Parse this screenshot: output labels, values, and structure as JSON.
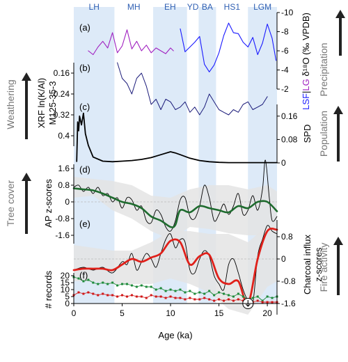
{
  "colors": {
    "band": "#ddeaf8",
    "lg": "#a020c0",
    "lsf": "#1a1aff",
    "xrf": "#1b1b7a",
    "spd": "#000000",
    "ap_smooth": "#1e6b2e",
    "charcoal_smooth": "#e0201a",
    "records_green": "#1e8a3a",
    "records_red": "#d01818",
    "envelope": "#e4e4e4",
    "theme": "#777777"
  },
  "period_labels": [
    "LH",
    "MH",
    "EH",
    "YD",
    "BA",
    "HS1",
    "LGM"
  ],
  "panel_labels": [
    "(a)",
    "(b)",
    "(c)",
    "(d)",
    "(e)",
    "(f)"
  ],
  "axis_titles": {
    "d18o_lsf": "LSF",
    "d18o_sep": "|",
    "d18o_lg": "LG",
    "d18o_rest": " δ¹⁸O (‰ VPDB)",
    "xrf_line1": "XRF ln(K/Al)",
    "xrf_line2": "M125-35-3",
    "spd": "SPD",
    "ap": "AP z-scores",
    "charcoal_line1": "Charcoal influx",
    "charcoal_line2": "z-scores",
    "records": "# records",
    "x": "Age (ka)"
  },
  "theme_labels": {
    "precipitation": "Precipitation",
    "weathering": "Weathering",
    "population": "Population",
    "tree_cover": "Tree cover",
    "fire_activity": "Fire activity"
  },
  "chart_data": {
    "type": "line",
    "x_label": "Age (ka)",
    "x_range": [
      0,
      21
    ],
    "x_ticks": [
      "0",
      "5",
      "10",
      "15",
      "20"
    ],
    "shaded_periods": [
      {
        "label": "LH",
        "start": 0,
        "end": 4.2
      },
      {
        "label": "MH",
        "start": 4.2,
        "end": 8.2
      },
      {
        "label": "EH",
        "start": 8.2,
        "end": 11.7
      },
      {
        "label": "YD",
        "start": 11.7,
        "end": 12.9
      },
      {
        "label": "BA",
        "start": 12.9,
        "end": 14.7
      },
      {
        "label": "HS1",
        "start": 14.7,
        "end": 18.0
      },
      {
        "label": "LGM",
        "start": 18.0,
        "end": 21.0
      }
    ],
    "panels": [
      {
        "id": "a",
        "axis_side": "right",
        "y_label": "LSF|LG δ18O (‰ VPDB)",
        "y_range": [
          -10,
          -2
        ],
        "y_inverted": true,
        "y_ticks": [
          "-10",
          "-8",
          "-6",
          "-4",
          "-2"
        ],
        "series": [
          {
            "name": "LG",
            "x": [
              1.5,
              2.0,
              2.5,
              3.0,
              3.5,
              4.0,
              4.5,
              5.0,
              5.5,
              6.0,
              6.5,
              7.0,
              7.5,
              8.0,
              8.5,
              9.0,
              9.5,
              10.0,
              10.3
            ],
            "y": [
              -6.0,
              -5.6,
              -6.4,
              -7.0,
              -6.3,
              -7.9,
              -5.8,
              -6.5,
              -8.2,
              -6.2,
              -7.0,
              -6.0,
              -6.6,
              -5.8,
              -6.3,
              -6.0,
              -5.7,
              -6.3,
              -6.0
            ]
          },
          {
            "name": "LSF",
            "x": [
              11.0,
              11.5,
              12.0,
              12.5,
              13.0,
              13.5,
              14.0,
              14.5,
              15.0,
              15.5,
              16.0,
              16.5,
              17.0,
              17.5,
              18.0,
              18.5,
              19.0,
              19.5,
              20.0,
              20.5,
              20.9
            ],
            "y": [
              -8.3,
              -5.9,
              -6.4,
              -6.9,
              -7.5,
              -4.6,
              -3.8,
              -4.5,
              -5.8,
              -7.6,
              -8.9,
              -7.9,
              -7.8,
              -6.9,
              -6.4,
              -7.4,
              -5.6,
              -6.8,
              -8.8,
              -7.3,
              -5.0
            ]
          }
        ]
      },
      {
        "id": "b",
        "axis_side": "left",
        "y_label": "XRF ln(K/Al) M125-35-3",
        "y_range": [
          0.12,
          0.44
        ],
        "y_inverted": true,
        "y_ticks": [
          "0.16",
          "0.24",
          "0.32",
          "0.4"
        ],
        "series": [
          {
            "name": "",
            "x": [
              4.5,
              5.0,
              5.5,
              6.0,
              6.5,
              7.0,
              7.5,
              8.0,
              8.5,
              9.0,
              9.5,
              10.0,
              10.5,
              11.0,
              11.5,
              12.0,
              12.5,
              13.0,
              13.5,
              14.0,
              14.5,
              15.0,
              15.5,
              16.0,
              16.5,
              17.0,
              17.5,
              18.0,
              18.5,
              19.0,
              19.5,
              20.0
            ],
            "y": [
              0.12,
              0.18,
              0.2,
              0.24,
              0.18,
              0.16,
              0.21,
              0.28,
              0.26,
              0.3,
              0.26,
              0.27,
              0.3,
              0.29,
              0.27,
              0.31,
              0.29,
              0.32,
              0.29,
              0.24,
              0.27,
              0.3,
              0.31,
              0.32,
              0.3,
              0.31,
              0.28,
              0.27,
              0.3,
              0.29,
              0.28,
              0.25
            ]
          }
        ]
      },
      {
        "id": "c",
        "axis_side": "right",
        "y_label": "SPD",
        "y_range": [
          0,
          0.2
        ],
        "y_inverted": false,
        "y_ticks": [
          "0",
          "0.08",
          "0.16"
        ],
        "series": [
          {
            "name": "",
            "x": [
              0.3,
              0.4,
              0.5,
              0.6,
              0.8,
              1.0,
              1.2,
              1.5,
              2.0,
              3.0,
              4.0,
              5.0,
              6.0,
              7.0,
              8.0,
              9.0,
              10.0,
              10.5,
              11.0,
              12.0,
              13.0,
              14.0,
              15.0,
              16.0,
              17.0,
              18.0,
              19.0,
              20.0,
              21.0
            ],
            "y": [
              0.005,
              0.14,
              0.11,
              0.16,
              0.13,
              0.17,
              0.1,
              0.06,
              0.02,
              0.006,
              0.004,
              0.006,
              0.008,
              0.012,
              0.018,
              0.028,
              0.038,
              0.034,
              0.028,
              0.016,
              0.008,
              0.004,
              0.002,
              0.001,
              0.001,
              0.001,
              0.001,
              0.001,
              0.001
            ]
          }
        ]
      },
      {
        "id": "d",
        "axis_side": "left",
        "y_label": "AP z-scores",
        "y_range": [
          -2.0,
          1.8
        ],
        "y_inverted": false,
        "y_ticks": [
          "1.6",
          "0.8",
          "0",
          "-0.8",
          "-1.6"
        ],
        "envelope": {
          "x": [
            0,
            2,
            4,
            6,
            8,
            10,
            12,
            14,
            16,
            18,
            20,
            21
          ],
          "upper": [
            1.2,
            1.1,
            1.0,
            0.8,
            0.3,
            0.2,
            0.6,
            0.8,
            0.8,
            0.6,
            0.8,
            0.5
          ],
          "lower": [
            0.2,
            0.3,
            -0.4,
            -0.8,
            -1.4,
            -1.8,
            -1.2,
            -1.3,
            -1.5,
            -1.6,
            -1.6,
            -1.2
          ]
        },
        "series": [
          {
            "name": "",
            "x": [
              0,
              0.5,
              1.0,
              1.5,
              2.0,
              2.5,
              3.0,
              3.5,
              4.0,
              4.5,
              5.0,
              5.5,
              6.0,
              6.5,
              7.0,
              7.5,
              8.0,
              8.5,
              9.0,
              9.5,
              10.0,
              10.5,
              11.0,
              11.5,
              12.0,
              12.5,
              13.0,
              13.5,
              14.0,
              14.5,
              15.0,
              15.5,
              16.0,
              16.5,
              17.0,
              17.5,
              18.0,
              18.5,
              19.0,
              19.5,
              19.8,
              20.2,
              20.5,
              21.0
            ],
            "y": [
              0.7,
              0.8,
              0.5,
              0.7,
              0.4,
              0.7,
              0.3,
              0.4,
              0.0,
              0.2,
              -0.3,
              0.2,
              0.1,
              -0.4,
              -0.2,
              -0.9,
              -1.0,
              -0.4,
              -0.6,
              -1.2,
              -1.4,
              -0.9,
              0.1,
              0.2,
              -0.7,
              -0.8,
              -0.2,
              0.8,
              0.2,
              -0.9,
              -0.6,
              -0.1,
              -0.6,
              -0.2,
              0.4,
              -0.6,
              -0.4,
              0.3,
              -0.4,
              0.6,
              2.0,
              0.2,
              -0.9,
              -0.7
            ]
          },
          {
            "name": "",
            "x": [
              0,
              1,
              2,
              3,
              4,
              5,
              6,
              7,
              8,
              9,
              10,
              10.5,
              11,
              12,
              13,
              14,
              15,
              16,
              17,
              18,
              19,
              20,
              21
            ],
            "y": [
              0.65,
              0.6,
              0.55,
              0.4,
              0.2,
              0.0,
              -0.1,
              -0.3,
              -0.7,
              -0.9,
              -1.2,
              -1.1,
              -0.4,
              -0.5,
              -0.2,
              -0.3,
              -0.4,
              -0.5,
              -0.2,
              -0.3,
              0.0,
              0.0,
              -0.45
            ]
          }
        ]
      },
      {
        "id": "e",
        "axis_side": "right",
        "y_label": "Charcoal influx z-scores",
        "y_range": [
          -2.0,
          1.4
        ],
        "y_inverted": false,
        "y_ticks": [
          "0.8",
          "0",
          "-0.8",
          "-1.6"
        ],
        "envelope": {
          "x": [
            0,
            2,
            4,
            6,
            8,
            10,
            12,
            14,
            16,
            18,
            20,
            21
          ],
          "upper": [
            0.5,
            0.4,
            0.3,
            0.3,
            0.6,
            1.0,
            1.0,
            0.9,
            0.9,
            0.6,
            1.2,
            1.2
          ],
          "lower": [
            -0.8,
            -0.8,
            -0.9,
            -0.9,
            -0.9,
            -0.7,
            -0.9,
            -1.2,
            -1.8,
            -2.0,
            -1.0,
            -0.8
          ]
        },
        "series": [
          {
            "name": "",
            "x": [
              0,
              1.0,
              2.0,
              3.0,
              4.0,
              5.0,
              5.5,
              6.0,
              6.5,
              7.0,
              7.5,
              8.0,
              8.5,
              9.0,
              9.5,
              10.0,
              10.5,
              11.0,
              11.5,
              12.0,
              12.5,
              13.0,
              13.5,
              14.0,
              14.5,
              15.0,
              15.5,
              16.0,
              16.5,
              17.0,
              17.5,
              18.0,
              18.5,
              19.0,
              19.5,
              20.0,
              20.5,
              21.0
            ],
            "y": [
              -0.4,
              -0.3,
              -0.4,
              -0.3,
              -0.5,
              -0.1,
              -0.2,
              0.2,
              -0.4,
              -0.1,
              0.2,
              0.0,
              -0.3,
              0.2,
              0.7,
              0.9,
              0.4,
              0.7,
              0.6,
              -0.4,
              -0.5,
              0.0,
              0.3,
              0.1,
              -0.6,
              -0.9,
              -1.1,
              -0.2,
              0.0,
              -0.5,
              -1.1,
              -1.5,
              -1.6,
              0.1,
              0.7,
              1.2,
              1.0,
              0.9
            ]
          },
          {
            "name": "",
            "x": [
              0,
              1,
              2,
              3,
              4,
              5,
              6,
              7,
              8,
              9,
              10,
              11,
              12,
              13,
              14,
              15,
              16,
              17,
              18,
              19,
              20,
              21
            ],
            "y": [
              -0.4,
              -0.35,
              -0.35,
              -0.35,
              -0.4,
              -0.2,
              0.0,
              -0.1,
              0.05,
              0.2,
              0.65,
              0.6,
              -0.2,
              0.1,
              0.15,
              -0.7,
              -0.9,
              -0.8,
              -1.6,
              0.0,
              1.0,
              1.05
            ]
          }
        ]
      },
      {
        "id": "f",
        "axis_side": "left",
        "y_label": "# records",
        "y_range": [
          0,
          22
        ],
        "y_inverted": false,
        "y_ticks": [
          "0",
          "5",
          "10",
          "15",
          "20"
        ],
        "series": [
          {
            "name": "",
            "x": [
              0,
              0.5,
              1.0,
              1.5,
              2.0,
              2.5,
              3.0,
              3.5,
              4.0,
              4.5,
              5.0,
              5.5,
              6.0,
              6.5,
              7.0,
              7.5,
              8.0,
              8.5,
              9.0,
              9.5,
              10.0,
              10.5,
              11.0,
              11.5,
              12.0,
              12.5,
              13.0,
              13.5,
              14.0,
              14.5,
              15.0,
              15.5,
              16.0,
              16.5,
              17.0,
              17.5,
              18.0,
              18.5,
              19.0,
              19.5,
              20.0,
              20.5,
              21.0
            ],
            "y": [
              19,
              18,
              16,
              17,
              15,
              14,
              15,
              14,
              15,
              13,
              14,
              14,
              13,
              12,
              13,
              12,
              12,
              10,
              11,
              9,
              10,
              9,
              10,
              8,
              9,
              7,
              8,
              7,
              9,
              6,
              8,
              7,
              6,
              5,
              7,
              5,
              3,
              4,
              5,
              2,
              5,
              4,
              5
            ]
          },
          {
            "name": "",
            "x": [
              0,
              0.5,
              1.0,
              1.5,
              2.0,
              2.5,
              3.0,
              3.5,
              4.0,
              4.5,
              5.0,
              5.5,
              6.0,
              6.5,
              7.0,
              7.5,
              8.0,
              8.5,
              9.0,
              9.5,
              10.0,
              10.5,
              11.0,
              11.5,
              12.0,
              12.5,
              13.0,
              13.5,
              14.0,
              14.5,
              15.0,
              15.5,
              16.0,
              16.5,
              17.0,
              17.5,
              18.0,
              18.5,
              19.0,
              19.5,
              20.0,
              20.5,
              21.0
            ],
            "y": [
              6,
              8,
              7,
              8,
              7,
              6,
              7,
              6,
              6,
              5,
              6,
              5,
              6,
              5,
              5,
              4,
              6,
              5,
              5,
              4,
              5,
              4,
              4,
              3,
              4,
              3,
              3,
              4,
              3,
              2,
              3,
              2,
              3,
              2,
              3,
              2,
              2,
              1,
              2,
              1,
              1,
              1,
              1
            ]
          }
        ]
      }
    ],
    "annotation": {
      "type": "arrow",
      "x": 18.0,
      "panel": "e",
      "y": -1.6
    }
  }
}
